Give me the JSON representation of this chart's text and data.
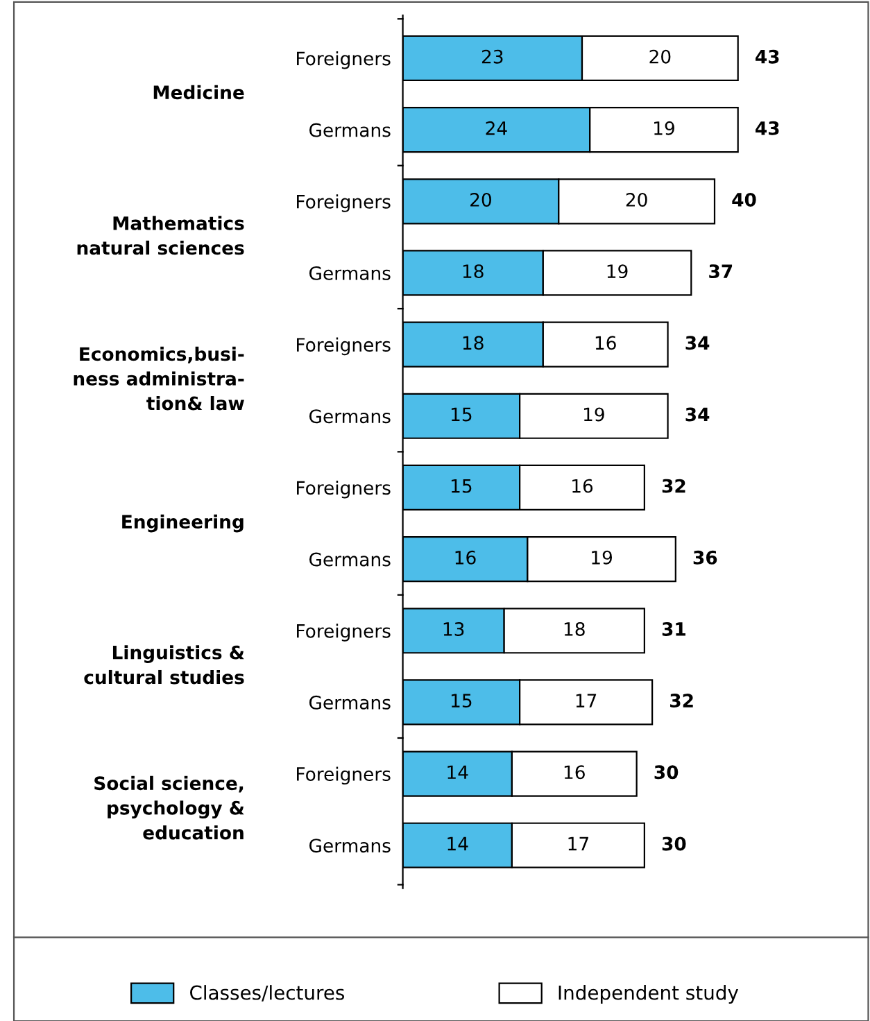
{
  "chart_data": {
    "type": "bar",
    "orientation": "horizontal",
    "stacked": true,
    "categories": [
      "Foreigners",
      "Germans",
      "Foreigners",
      "Germans",
      "Foreigners",
      "Germans",
      "Foreigners",
      "Germans",
      "Foreigners",
      "Germans",
      "Foreigners",
      "Germans"
    ],
    "series": [
      {
        "name": "Classes/lectures",
        "color": "#4dbde9",
        "values": [
          23,
          24,
          20,
          18,
          18,
          15,
          15,
          16,
          13,
          15,
          14,
          14
        ]
      },
      {
        "name": "Independent study",
        "color": "#ffffff",
        "values": [
          20,
          19,
          20,
          19,
          16,
          19,
          16,
          19,
          18,
          17,
          16,
          17
        ]
      }
    ],
    "totals": [
      "43",
      "43",
      "40",
      "37",
      "34",
      "34",
      "32",
      "36",
      "31",
      "32",
      "30",
      "30"
    ],
    "annotations": [
      "Medicine",
      "Mathematics\nnatural sciences",
      "Economics,busi-\nness administra-\ntion& law",
      "Engineering",
      "Linguistics &\ncultural studies",
      "Social science,\npsychology &\neducation"
    ],
    "data_labels": true,
    "legend": "bottom",
    "grid": false
  }
}
